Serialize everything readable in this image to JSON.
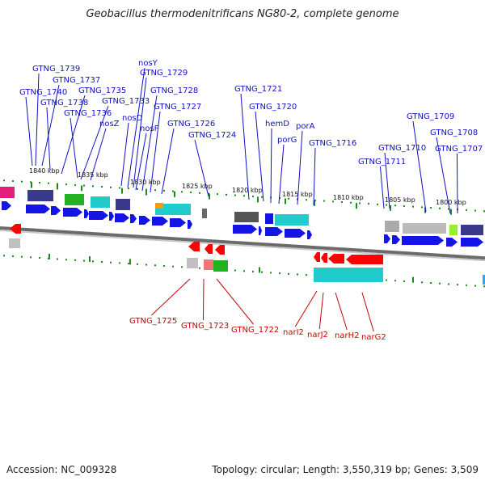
{
  "title": "Geobacillus thermodenitrificans NG80-2, complete genome",
  "footer": {
    "accession": "Accession: NC_009328",
    "summary": "Topology: circular; Length: 3,550,319 bp; Genes: 3,509"
  },
  "colors": {
    "forward": "#1414e6",
    "reverse": "#ff0000",
    "forward_label": "#1010c8",
    "reverse_label": "#cc0000",
    "tick": "#1a8c1a",
    "backbone": "#808080"
  },
  "scale_labels": [
    "1840 kbp",
    "1835 kbp",
    "1830 kbp",
    "1825 kbp",
    "1820 kbp",
    "1815 kbp",
    "1810 kbp",
    "1805 kbp",
    "1800 kbp"
  ],
  "forward_labels": [
    "GTNG_1739",
    "GTNG_1737",
    "GTNG_1740",
    "GTNG_1735",
    "GTNG_1738",
    "GTNG_1733",
    "GTNG_1736",
    "nosZ",
    "nosY",
    "GTNG_1729",
    "GTNG_1728",
    "nosD",
    "GTNG_1727",
    "nosF",
    "GTNG_1726",
    "GTNG_1724",
    "GTNG_1721",
    "GTNG_1720",
    "hemD",
    "porG",
    "porA",
    "GTNG_1716",
    "GTNG_1710",
    "GTNG_1711",
    "GTNG_1709",
    "GTNG_1708",
    "GTNG_1707"
  ],
  "reverse_labels": [
    "GTNG_1725",
    "GTNG_1723",
    "GTNG_1722",
    "narI2",
    "narJ2",
    "narH2",
    "narG2"
  ]
}
